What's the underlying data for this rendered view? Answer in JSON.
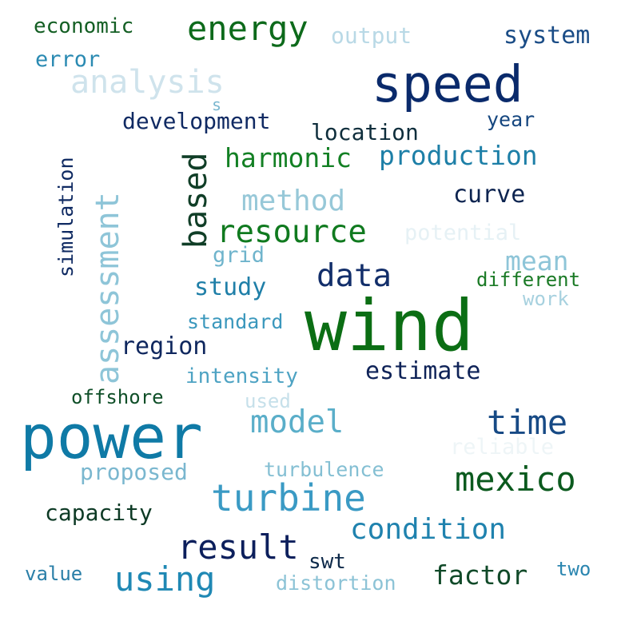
{
  "word_cloud": {
    "words": [
      {
        "text": "wind",
        "color": "#0b6e14"
      },
      {
        "text": "power",
        "color": "#0f7aa6"
      },
      {
        "text": "speed",
        "color": "#0a2a6b"
      },
      {
        "text": "turbine",
        "color": "#3a9ac4"
      },
      {
        "text": "energy",
        "color": "#0d6a1b"
      },
      {
        "text": "analysis",
        "color": "#cfe3ec"
      },
      {
        "text": "mexico",
        "color": "#0b5a1e"
      },
      {
        "text": "time",
        "color": "#174a85"
      },
      {
        "text": "result",
        "color": "#0c1f5c"
      },
      {
        "text": "resource",
        "color": "#107a1f"
      },
      {
        "text": "using",
        "color": "#1f88b4"
      },
      {
        "text": "assessment",
        "color": "#8ec5d8"
      },
      {
        "text": "condition",
        "color": "#1f82ae"
      },
      {
        "text": "model",
        "color": "#5aaec9"
      },
      {
        "text": "production",
        "color": "#1d7fa7"
      },
      {
        "text": "data",
        "color": "#122e6a"
      },
      {
        "text": "based",
        "color": "#103e27"
      },
      {
        "text": "method",
        "color": "#97c8d8"
      },
      {
        "text": "system",
        "color": "#1a4c86"
      },
      {
        "text": "harmonic",
        "color": "#138024"
      },
      {
        "text": "estimate",
        "color": "#0f2358"
      },
      {
        "text": "region",
        "color": "#0f275e"
      },
      {
        "text": "factor",
        "color": "#114a29"
      },
      {
        "text": "mean",
        "color": "#8ec5d8"
      },
      {
        "text": "curve",
        "color": "#0d2450"
      },
      {
        "text": "development",
        "color": "#102a63"
      },
      {
        "text": "location",
        "color": "#0f2e3c"
      },
      {
        "text": "output",
        "color": "#b9d9e6"
      },
      {
        "text": "study",
        "color": "#1f7fa8"
      },
      {
        "text": "capacity",
        "color": "#0d3a25"
      },
      {
        "text": "proposed",
        "color": "#7ab7cf"
      },
      {
        "text": "potential",
        "color": "#e6f1f5"
      },
      {
        "text": "turbulence",
        "color": "#84bfd3"
      },
      {
        "text": "reliable",
        "color": "#eef5f7"
      },
      {
        "text": "grid",
        "color": "#6fb4cc"
      },
      {
        "text": "distortion",
        "color": "#8cc3d6"
      },
      {
        "text": "intensity",
        "color": "#4ea3c3"
      },
      {
        "text": "standard",
        "color": "#3b98bd"
      },
      {
        "text": "different",
        "color": "#1a7a25"
      },
      {
        "text": "error",
        "color": "#2a8ab2"
      },
      {
        "text": "economic",
        "color": "#145f24"
      },
      {
        "text": "offshore",
        "color": "#0f4f28"
      },
      {
        "text": "year",
        "color": "#15467f"
      },
      {
        "text": "simulation",
        "color": "#0f2a62"
      },
      {
        "text": "value",
        "color": "#2a7fa8"
      },
      {
        "text": "swt",
        "color": "#0e2a4a"
      },
      {
        "text": "work",
        "color": "#a7d1df"
      },
      {
        "text": "used",
        "color": "#c6e0ea"
      },
      {
        "text": "two",
        "color": "#2b86b0"
      },
      {
        "text": "s",
        "color": "#7ab7cf"
      }
    ]
  }
}
